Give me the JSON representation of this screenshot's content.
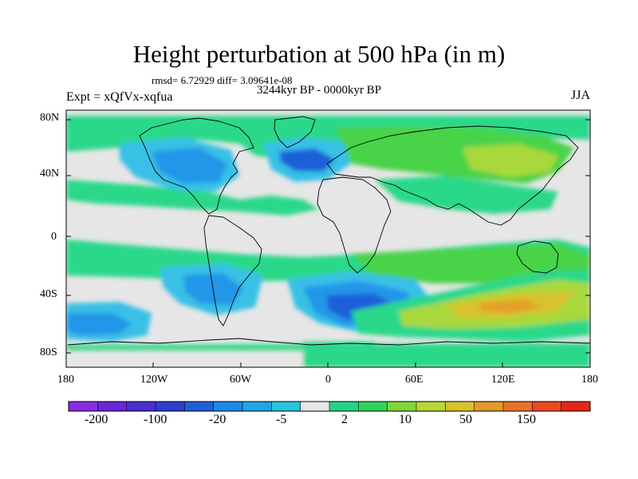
{
  "title": "Height perturbation at 500 hPa (in m)",
  "stats": "rmsd= 6.72929 diff= 3.09641e-08",
  "period": "3244kyr BP - 0000kyr BP",
  "experiment": "Expt = xQfVx-xqfua",
  "season": "JJA",
  "lat_labels": [
    "80N",
    "40N",
    "0",
    "40S",
    "80S"
  ],
  "lon_labels": [
    "180",
    "120W",
    "60W",
    "0",
    "60E",
    "120E",
    "180"
  ],
  "colorbar": {
    "labels": [
      "-200",
      "-100",
      "-20",
      "-5",
      "2",
      "10",
      "50",
      "150"
    ],
    "colors": [
      "#8a2be2",
      "#6a25d8",
      "#4b2fd0",
      "#2d3fcc",
      "#1f5fd6",
      "#1e88e5",
      "#1fa6e0",
      "#2cc3e0",
      "#e6e6e6",
      "#24d28a",
      "#2fd35a",
      "#7fd63a",
      "#b6d836",
      "#d8c22e",
      "#e39a2a",
      "#e8722a",
      "#ea4a22",
      "#e6261a"
    ]
  },
  "palette": {
    "neutral": "#e6e6e6",
    "weak_pos": "#2cd88a",
    "pos": "#4ad34a",
    "mid_pos": "#a8d83a",
    "strong_pos": "#d8c22e",
    "stronger_pos": "#e4a02c",
    "weak_neg": "#39c0e6",
    "neg": "#2196e8",
    "strong_neg": "#1a5ed8",
    "stronger_neg": "#2848c8"
  }
}
